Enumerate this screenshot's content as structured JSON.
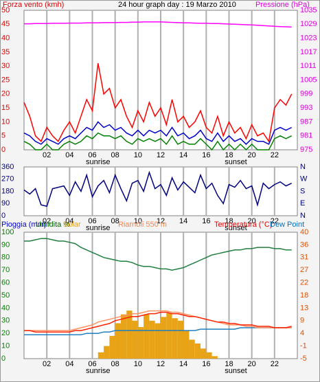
{
  "chart_data": [
    {
      "type": "line",
      "header": [
        {
          "text": "Forza vento (kmh)",
          "color": "#e00000"
        },
        {
          "text": "24 hour graph day : 19 Marzo 2010",
          "color": "#000000"
        },
        {
          "text": "Pressione (hPa)",
          "color": "#e000e0"
        }
      ],
      "xlim": [
        0,
        24
      ],
      "xticks": [
        {
          "value": 2,
          "label": "02"
        },
        {
          "value": 4,
          "label": "04"
        },
        {
          "value": 6,
          "label": "06"
        },
        {
          "value": 8,
          "label": "08"
        },
        10,
        12,
        14,
        16,
        18,
        20,
        22
      ],
      "annotations": [
        {
          "text": "sunrise",
          "x": 6.5
        },
        {
          "text": "sunset",
          "x": 18.6
        }
      ],
      "ylim": [
        0,
        50
      ],
      "yticks": [
        0,
        5,
        10,
        15,
        20,
        25,
        30,
        35,
        40,
        45,
        50
      ],
      "ytick_color": "#e00000",
      "y2lim": [
        975,
        1035
      ],
      "y2ticks": [
        975,
        981,
        987,
        993,
        999,
        1005,
        1011,
        1017,
        1023,
        1029,
        1035
      ],
      "y2tick_color": "#e000e0",
      "x": [
        0,
        0.5,
        1,
        1.5,
        2,
        2.5,
        3,
        3.5,
        4,
        4.5,
        5,
        5.5,
        6,
        6.5,
        7,
        7.5,
        8,
        8.5,
        9,
        9.5,
        10,
        10.5,
        11,
        11.5,
        12,
        12.5,
        13,
        13.5,
        14,
        14.5,
        15,
        15.5,
        16,
        16.5,
        17,
        17.5,
        18,
        18.5,
        19,
        19.5,
        20,
        20.5,
        21,
        21.5,
        22,
        22.5,
        23,
        23.5
      ],
      "series": [
        {
          "color": "#ff0000",
          "values": [
            17,
            12,
            5,
            3,
            8,
            5,
            3,
            7,
            10,
            6,
            12,
            18,
            14,
            31,
            20,
            22,
            15,
            18,
            12,
            8,
            14,
            10,
            17,
            12,
            15,
            9,
            18,
            10,
            12,
            8,
            10,
            14,
            8,
            6,
            12,
            5,
            10,
            6,
            8,
            4,
            9,
            5,
            6,
            3,
            15,
            18,
            16,
            20
          ]
        },
        {
          "color": "#008000",
          "values": [
            3,
            2,
            0,
            0,
            2,
            0,
            0,
            2,
            3,
            2,
            3,
            5,
            4,
            6,
            5,
            5,
            4,
            5,
            3,
            2,
            4,
            3,
            4,
            3,
            4,
            2,
            5,
            2,
            3,
            2,
            2,
            4,
            2,
            0,
            3,
            0,
            2,
            0,
            2,
            0,
            2,
            0,
            0,
            0,
            4,
            5,
            4,
            5
          ]
        },
        {
          "color": "#0000cc",
          "values": [
            6,
            5,
            3,
            2,
            4,
            3,
            2,
            4,
            5,
            4,
            6,
            8,
            7,
            10,
            8,
            9,
            7,
            8,
            6,
            5,
            7,
            5,
            7,
            6,
            7,
            5,
            8,
            5,
            6,
            4,
            5,
            7,
            4,
            3,
            6,
            3,
            5,
            3,
            4,
            2,
            4,
            3,
            3,
            2,
            7,
            8,
            7,
            8
          ]
        },
        {
          "color": "#ff00ff",
          "axis": "y2",
          "values": [
            1029.2,
            1029.2,
            1029.3,
            1029.3,
            1029.3,
            1029.4,
            1029.4,
            1029.4,
            1029.5,
            1029.5,
            1029.5,
            1029.6,
            1029.6,
            1029.6,
            1029.7,
            1029.7,
            1029.7,
            1029.8,
            1029.8,
            1029.9,
            1029.9,
            1030.0,
            1030.0,
            1030.0,
            1030.0,
            1029.9,
            1029.8,
            1029.7,
            1029.6,
            1029.6,
            1029.5,
            1029.4,
            1029.4,
            1029.3,
            1029.3,
            1029.2,
            1029.1,
            1029.0,
            1028.9,
            1028.8,
            1028.7,
            1028.6,
            1028.4,
            1028.3,
            1028.1,
            1028.0,
            1027.9,
            1027.8
          ]
        }
      ]
    },
    {
      "type": "line",
      "xlim": [
        0,
        24
      ],
      "xticks": [
        {
          "value": 2,
          "label": "02"
        },
        {
          "value": 4,
          "label": "04"
        },
        {
          "value": 6,
          "label": "06"
        },
        {
          "value": 8,
          "label": "08"
        },
        10,
        12,
        14,
        16,
        18,
        20,
        22
      ],
      "annotations": [
        {
          "text": "sunrise",
          "x": 6.5
        },
        {
          "text": "sunset",
          "x": 18.6
        }
      ],
      "ylim": [
        0,
        360
      ],
      "yticks": [
        0,
        90,
        180,
        270,
        360
      ],
      "ytick_color": "#000080",
      "y2lim": [
        0,
        360
      ],
      "y2ticks": [
        {
          "value": 0,
          "label": "N"
        },
        {
          "value": 90,
          "label": "E"
        },
        {
          "value": 180,
          "label": "S"
        },
        {
          "value": 270,
          "label": "W"
        },
        {
          "value": 360,
          "label": "N"
        }
      ],
      "y2tick_color": "#000080",
      "x": [
        0,
        0.5,
        1,
        1.5,
        2,
        2.5,
        3,
        3.5,
        4,
        4.5,
        5,
        5.5,
        6,
        6.5,
        7,
        7.5,
        8,
        8.5,
        9,
        9.5,
        10,
        10.5,
        11,
        11.5,
        12,
        12.5,
        13,
        13.5,
        14,
        14.5,
        15,
        15.5,
        16,
        16.5,
        17,
        17.5,
        18,
        18.5,
        19,
        19.5,
        20,
        20.5,
        21,
        21.5,
        22,
        22.5,
        23,
        23.5
      ],
      "series": [
        {
          "color": "#000080",
          "values": [
            190,
            160,
            200,
            80,
            70,
            200,
            210,
            220,
            150,
            250,
            180,
            300,
            140,
            220,
            260,
            170,
            300,
            200,
            110,
            240,
            260,
            180,
            320,
            200,
            230,
            150,
            280,
            190,
            250,
            210,
            170,
            300,
            200,
            240,
            150,
            90,
            230,
            210,
            260,
            200,
            220,
            80,
            240,
            200,
            230,
            250,
            220,
            240
          ]
        }
      ]
    },
    {
      "type": "line",
      "header": [
        {
          "text": "Pioggia (mm)",
          "color": "#0000cc"
        },
        {
          "text": "Umidita %",
          "color": "#006600"
        },
        {
          "text": "Solar",
          "color": "#e8a317"
        },
        {
          "text": "Riarnoli 550 m",
          "color": "#ff8040"
        },
        {
          "text": "Temperatura (°C)",
          "color": "#e00000"
        },
        {
          "text": "Dew Point",
          "color": "#0070c0"
        }
      ],
      "xlim": [
        0,
        24
      ],
      "xticks": [
        {
          "value": 2,
          "label": "02"
        },
        {
          "value": 4,
          "label": "04"
        },
        {
          "value": 6,
          "label": "06"
        },
        {
          "value": 8,
          "label": "08"
        },
        10,
        12,
        14,
        16,
        18,
        20,
        22
      ],
      "annotations": [
        {
          "text": "sunrise",
          "x": 6.5
        },
        {
          "text": "sunset",
          "x": 18.6
        }
      ],
      "ylim": [
        0,
        100
      ],
      "yticks": [
        0,
        10,
        20,
        30,
        40,
        50,
        60,
        70,
        80,
        90,
        100
      ],
      "ytick_color": "#008000",
      "y2lim": [
        -5,
        40
      ],
      "y2ticks": [
        -5,
        {
          "value": -0.5,
          "label": "-1"
        },
        4,
        {
          "value": 8.5,
          "label": "9"
        },
        13,
        {
          "value": 17.5,
          "label": "18"
        },
        22,
        {
          "value": 26.5,
          "label": "27"
        },
        31,
        {
          "value": 35.5,
          "label": "36"
        },
        40
      ],
      "y2tick_color": "#e05000",
      "x": [
        0,
        0.5,
        1,
        1.5,
        2,
        2.5,
        3,
        3.5,
        4,
        4.5,
        5,
        5.5,
        6,
        6.5,
        7,
        7.5,
        8,
        8.5,
        9,
        9.5,
        10,
        10.5,
        11,
        11.5,
        12,
        12.5,
        13,
        13.5,
        14,
        14.5,
        15,
        15.5,
        16,
        16.5,
        17,
        17.5,
        18,
        18.5,
        19,
        19.5,
        20,
        20.5,
        21,
        21.5,
        22,
        22.5,
        23,
        23.5
      ],
      "series": [
        {
          "color": "#e8a317",
          "style": "bar",
          "values": [
            0,
            0,
            0,
            0,
            0,
            0,
            0,
            0,
            0,
            0,
            0,
            0,
            0,
            5,
            10,
            18,
            28,
            35,
            38,
            30,
            25,
            35,
            30,
            28,
            33,
            36,
            32,
            30,
            22,
            15,
            12,
            8,
            5,
            2,
            0,
            0,
            0,
            0,
            0,
            0,
            0,
            0,
            0,
            0,
            0,
            0,
            0,
            0
          ]
        },
        {
          "color": "#1f7f3f",
          "values": [
            93,
            93,
            94,
            95,
            95,
            94,
            93,
            93,
            92,
            91,
            88,
            86,
            84,
            82,
            80,
            79,
            78,
            77,
            77,
            76,
            74,
            73,
            73,
            72,
            71,
            71,
            70,
            71,
            72,
            74,
            76,
            78,
            80,
            82,
            83,
            84,
            85,
            86,
            86,
            87,
            87,
            88,
            88,
            88,
            87,
            87,
            86,
            86
          ]
        },
        {
          "color": "#2080c0",
          "axis": "y2",
          "values": [
            3.5,
            3.5,
            3.5,
            3.5,
            3.5,
            3.5,
            3.5,
            3.5,
            3.5,
            3.5,
            3.5,
            4,
            4,
            4,
            4.5,
            4.5,
            5,
            5,
            5,
            5,
            5,
            5,
            5,
            5,
            5,
            5,
            5,
            5,
            5,
            5,
            5,
            5.5,
            5.5,
            5.5,
            5.5,
            5.5,
            5.5,
            5.5,
            6,
            6,
            6,
            6,
            6,
            6,
            6,
            6,
            6,
            6
          ]
        },
        {
          "color": "#ff9060",
          "axis": "y2",
          "values": [
            5,
            5,
            5,
            5,
            5,
            5,
            5,
            5,
            5,
            5.5,
            6,
            6.5,
            7,
            8,
            8.5,
            9,
            9.5,
            10,
            10.5,
            11,
            11,
            11.5,
            12,
            12,
            12,
            12,
            11.5,
            11.5,
            11,
            10.5,
            10,
            9.5,
            9,
            8.5,
            8,
            7.5,
            7,
            7,
            7,
            6.5,
            6.5,
            6,
            6,
            6,
            6,
            6,
            6,
            6
          ]
        },
        {
          "color": "#ff2000",
          "axis": "y2",
          "values": [
            5,
            5,
            4.5,
            4.5,
            4.5,
            4.5,
            4.5,
            4.5,
            4.5,
            5,
            5,
            5.5,
            6,
            6.5,
            7,
            7.5,
            8.5,
            9,
            9.5,
            10,
            10,
            10.5,
            11,
            11,
            11.5,
            11.5,
            11,
            11,
            10.5,
            10,
            10,
            9.5,
            9,
            8.5,
            8,
            8,
            7.5,
            7.5,
            7,
            7,
            7,
            6.5,
            6.5,
            6.5,
            6,
            6,
            6,
            6.5
          ]
        }
      ]
    }
  ]
}
